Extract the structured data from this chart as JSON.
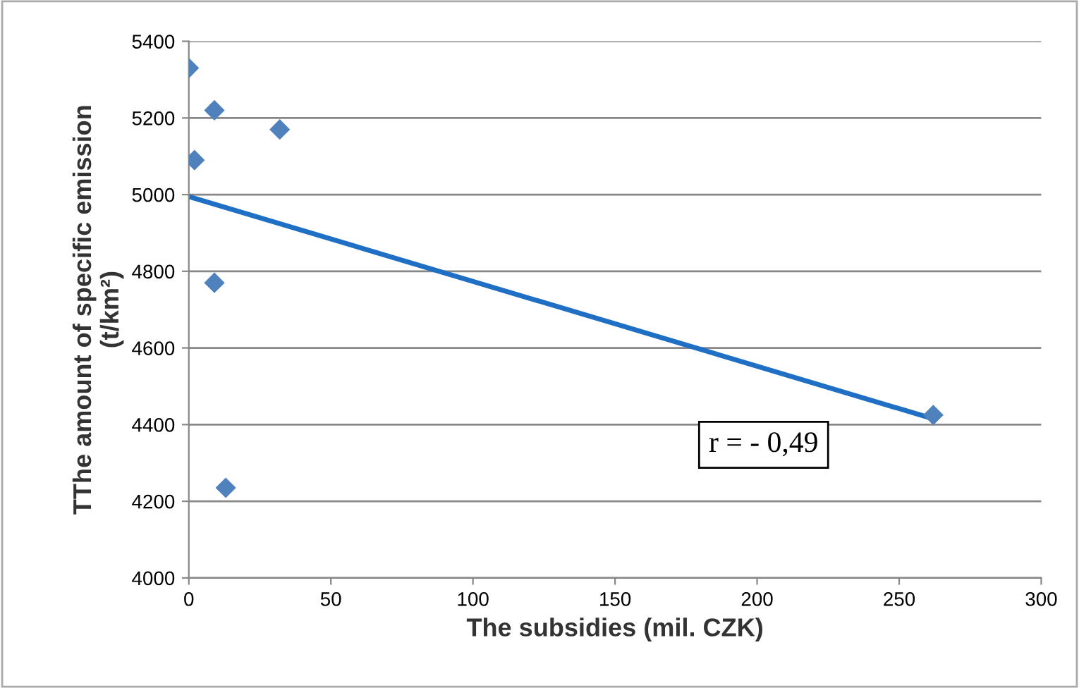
{
  "chart_data": {
    "type": "scatter",
    "xlabel": "The subsidies (mil. CZK)",
    "ylabel": "TThe amount of specific emission\n(t/km²)",
    "x": [
      0,
      9,
      2,
      32,
      9,
      13,
      262
    ],
    "series": [
      {
        "color": "#4f81bd",
        "marker": "diamond",
        "values": [
          5330,
          5220,
          5090,
          5170,
          4770,
          4235,
          4425
        ]
      },
      {
        "type": "line",
        "color": "#1f6fc5",
        "marker": "none",
        "x": [
          0,
          262
        ],
        "values": [
          4995,
          4415
        ]
      }
    ],
    "xlim": [
      0,
      300
    ],
    "xticks": [
      0,
      50,
      100,
      150,
      200,
      250,
      300
    ],
    "ylim": [
      4000,
      5400
    ],
    "yticks": [
      4000,
      4200,
      4400,
      4600,
      4800,
      5000,
      5200,
      5400
    ],
    "grid": "y",
    "legend": false,
    "annotations": [
      "r = - 0,49"
    ]
  }
}
